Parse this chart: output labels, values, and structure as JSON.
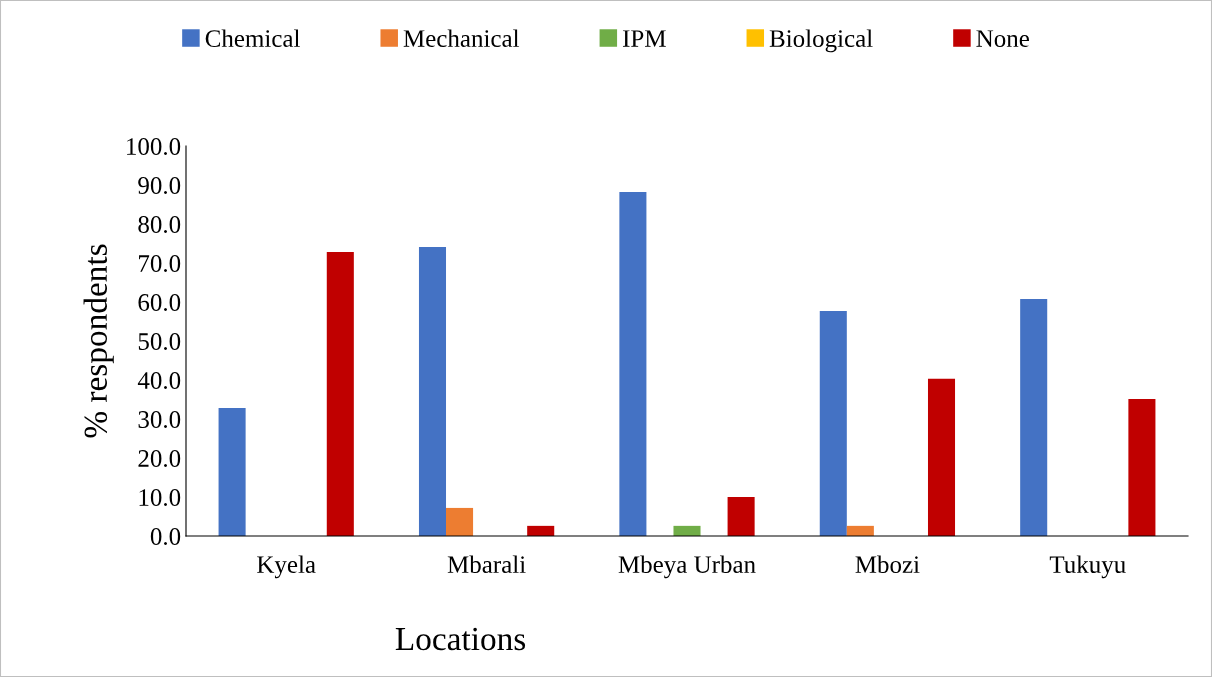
{
  "chart_data": {
    "type": "bar",
    "xlabel": "Locations",
    "ylabel": "% respondents",
    "categories": [
      "Kyela",
      "Mbarali",
      "Mbeya Urban",
      "Mbozi",
      "Tukuyu"
    ],
    "series": [
      {
        "name": "Chemical",
        "color": "#4472c4",
        "values": [
          32.8,
          74.1,
          88.2,
          57.7,
          60.8
        ]
      },
      {
        "name": "Mechanical",
        "color": "#ed7d31",
        "values": [
          0,
          7.2,
          0,
          2.6,
          0
        ]
      },
      {
        "name": "IPM",
        "color": "#70ad47",
        "values": [
          0,
          0,
          2.6,
          0,
          0
        ]
      },
      {
        "name": "Biological",
        "color": "#ffc000",
        "values": [
          0,
          0,
          0,
          0,
          0
        ]
      },
      {
        "name": "None",
        "color": "#c00000",
        "values": [
          72.8,
          2.6,
          10.0,
          40.3,
          35.1
        ]
      }
    ],
    "ylim": [
      0,
      100
    ],
    "yticks": [
      {
        "value": 0,
        "label": "0.0"
      },
      {
        "value": 10,
        "label": "10.0"
      },
      {
        "value": 20,
        "label": "20.0"
      },
      {
        "value": 30,
        "label": "30.0"
      },
      {
        "value": 40,
        "label": "40.0"
      },
      {
        "value": 50,
        "label": "50.0"
      },
      {
        "value": 60,
        "label": "60.0"
      },
      {
        "value": 70,
        "label": "70.0"
      },
      {
        "value": 80,
        "label": "80.0"
      },
      {
        "value": 90,
        "label": "90.0"
      },
      {
        "value": 100,
        "label": "100.0"
      }
    ],
    "grid": false,
    "legend": "top"
  }
}
